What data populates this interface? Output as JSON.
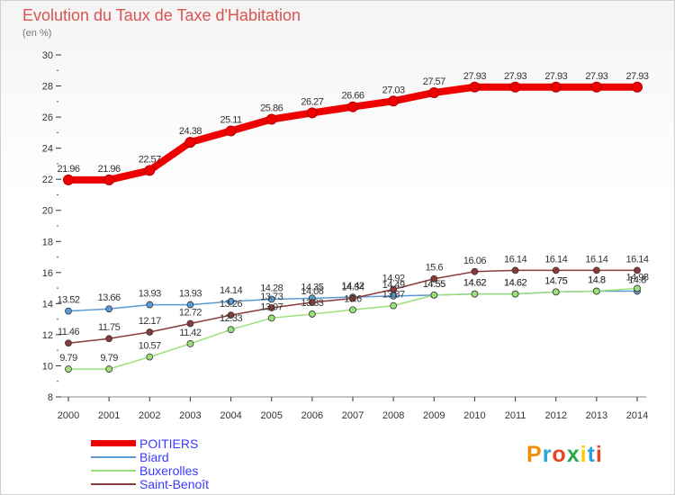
{
  "title": "Evolution du Taux de Taxe d'Habitation",
  "subtitle": "(en %)",
  "brand": {
    "text": "Proxiti",
    "colors": [
      "#f28c00",
      "#29a3d9",
      "#e8441f",
      "#2aa84a",
      "#ffcc00",
      "#29a3d9",
      "#e8441f"
    ]
  },
  "chart_data": {
    "type": "line",
    "title": "Evolution du Taux de Taxe d'Habitation",
    "ylabel": "(en %)",
    "xlabel": "",
    "categories": [
      "2000",
      "2001",
      "2002",
      "2003",
      "2004",
      "2005",
      "2006",
      "2007",
      "2008",
      "2009",
      "2010",
      "2011",
      "2012",
      "2013",
      "2014"
    ],
    "ylim": [
      8,
      30
    ],
    "yticks": [
      8,
      10,
      12,
      14,
      16,
      18,
      20,
      22,
      24,
      26,
      28,
      30
    ],
    "grid": false,
    "legend_position": "bottom-left",
    "series": [
      {
        "name": "POITIERS",
        "color": "#ee0000",
        "width": 8,
        "values": [
          21.96,
          21.96,
          22.57,
          24.38,
          25.11,
          25.86,
          26.27,
          26.66,
          27.03,
          27.57,
          27.93,
          27.93,
          27.93,
          27.93,
          27.93
        ]
      },
      {
        "name": "Biard",
        "color": "#5b9bd5",
        "width": 1.5,
        "values": [
          13.52,
          13.66,
          13.93,
          13.93,
          14.14,
          14.28,
          14.35,
          14.42,
          14.49,
          14.55,
          14.62,
          14.62,
          14.75,
          14.8,
          14.8
        ]
      },
      {
        "name": "Buxerolles",
        "color": "#9be07a",
        "width": 1.5,
        "values": [
          9.79,
          9.79,
          10.57,
          11.42,
          12.33,
          13.07,
          13.33,
          13.6,
          13.87,
          14.55,
          14.62,
          14.62,
          14.75,
          14.8,
          14.98
        ]
      },
      {
        "name": "Saint-Benoît",
        "color": "#8b3a3a",
        "width": 1.5,
        "values": [
          11.46,
          11.75,
          12.17,
          12.72,
          13.26,
          13.73,
          14.08,
          14.34,
          14.92,
          15.6,
          16.06,
          16.14,
          16.14,
          16.14,
          16.14
        ]
      }
    ]
  }
}
